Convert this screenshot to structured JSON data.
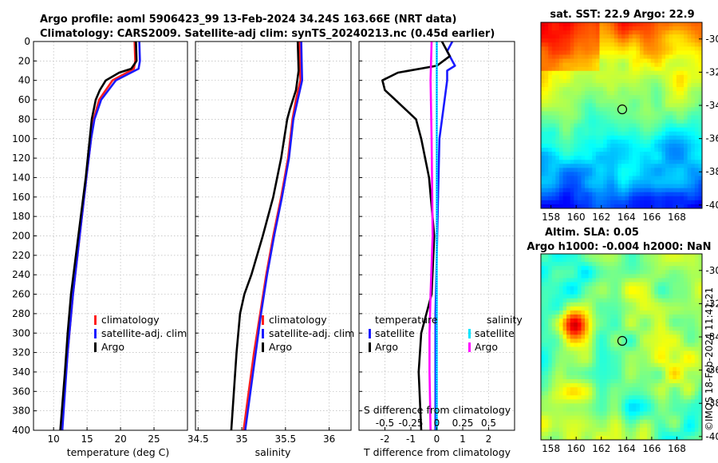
{
  "titles": {
    "line1": "Argo profile: aoml 5906423_99 13-Feb-2024 34.24S 163.66E (NRT data)",
    "line2": "Climatology: CARS2009. Satellite-adj clim: synTS_20240213.nc (0.45d earlier)"
  },
  "colors": {
    "climatology": "#ff1f1f",
    "satellite": "#1a1aff",
    "argo": "#000000",
    "sal_sat": "#00e5ff",
    "sal_argo": "#ff00ff"
  },
  "depth_ticks": [
    "0",
    "20",
    "40",
    "60",
    "80",
    "100",
    "120",
    "140",
    "160",
    "180",
    "200",
    "220",
    "240",
    "260",
    "280",
    "300",
    "320",
    "340",
    "360",
    "380",
    "400"
  ],
  "chart_data": [
    {
      "type": "line",
      "name": "temperature-profile",
      "xlabel": "temperature (deg C)",
      "ylabel": "depth",
      "xlim": [
        7,
        30
      ],
      "ylim": [
        0,
        400
      ],
      "xticks": [
        "10",
        "15",
        "20",
        "25"
      ],
      "legend": {
        "position": "bottom-right",
        "entries": [
          "climatology",
          "satellite-adj. clim",
          "Argo"
        ]
      },
      "series": [
        {
          "name": "climatology",
          "depth": [
            0,
            20,
            28,
            40,
            60,
            80,
            100,
            140,
            200,
            260,
            320,
            400
          ],
          "values": [
            22.1,
            22.2,
            22.0,
            18.8,
            16.8,
            16.0,
            15.6,
            14.9,
            13.9,
            12.9,
            12.1,
            11.2
          ]
        },
        {
          "name": "satellite-adj. clim",
          "depth": [
            0,
            20,
            28,
            40,
            60,
            80,
            100,
            140,
            200,
            260,
            320,
            400
          ],
          "values": [
            22.8,
            22.9,
            22.7,
            19.3,
            17.1,
            16.1,
            15.6,
            14.9,
            13.9,
            12.9,
            12.1,
            11.3
          ]
        },
        {
          "name": "Argo",
          "depth": [
            0,
            20,
            28,
            32,
            40,
            50,
            60,
            70,
            80,
            100,
            140,
            200,
            260,
            300,
            340,
            400
          ],
          "values": [
            22.3,
            22.4,
            21.6,
            19.8,
            17.8,
            16.9,
            16.3,
            16.0,
            15.7,
            15.4,
            14.8,
            13.7,
            12.6,
            12.1,
            11.7,
            11.0
          ]
        }
      ]
    },
    {
      "type": "line",
      "name": "salinity-profile",
      "xlabel": "salinity",
      "ylabel": "depth",
      "xlim": [
        34.47,
        36.25
      ],
      "ylim": [
        0,
        400
      ],
      "xticks": [
        "34.5",
        "35",
        "35.5",
        "36"
      ],
      "legend": {
        "position": "bottom-right",
        "entries": [
          "climatology",
          "satellite-adj. clim",
          "Argo"
        ]
      },
      "series": [
        {
          "name": "climatology",
          "depth": [
            0,
            40,
            60,
            80,
            120,
            160,
            200,
            240,
            280,
            320,
            360,
            400
          ],
          "values": [
            35.66,
            35.67,
            35.62,
            35.58,
            35.53,
            35.45,
            35.36,
            35.28,
            35.21,
            35.14,
            35.08,
            35.02
          ]
        },
        {
          "name": "satellite-adj. clim",
          "depth": [
            0,
            40,
            60,
            80,
            120,
            160,
            200,
            240,
            280,
            320,
            360,
            400
          ],
          "values": [
            35.68,
            35.69,
            35.64,
            35.59,
            35.54,
            35.46,
            35.37,
            35.29,
            35.22,
            35.16,
            35.1,
            35.04
          ]
        },
        {
          "name": "Argo",
          "depth": [
            0,
            30,
            50,
            70,
            80,
            120,
            160,
            200,
            240,
            260,
            280,
            320,
            360,
            400
          ],
          "values": [
            35.64,
            35.65,
            35.62,
            35.55,
            35.52,
            35.45,
            35.36,
            35.24,
            35.11,
            35.03,
            34.98,
            34.94,
            34.91,
            34.88
          ]
        }
      ]
    },
    {
      "type": "line",
      "name": "difference-profile",
      "xlabel": "T difference from climatology",
      "xlabel_top": "S difference from climatology",
      "ylabel": "depth",
      "xlim": [
        -3,
        3
      ],
      "ylim": [
        0,
        400
      ],
      "xticks": [
        "-2",
        "-1",
        "0",
        "1",
        "2"
      ],
      "xticks_top": [
        "-0.5",
        "-0.25",
        "0",
        "0.25",
        "0.5"
      ],
      "legend": {
        "position": "bottom",
        "temperature_header": "temperature",
        "salinity_header": "salinity",
        "entries": [
          "satellite",
          "Argo",
          "satellite",
          "Argo"
        ]
      },
      "series": [
        {
          "name": "temperature satellite",
          "depth": [
            0,
            10,
            25,
            30,
            40,
            60,
            100,
            160,
            220,
            280,
            340,
            400
          ],
          "values": [
            0.6,
            0.4,
            0.7,
            0.4,
            0.4,
            0.3,
            0.1,
            0.05,
            0.0,
            -0.05,
            -0.05,
            -0.05
          ]
        },
        {
          "name": "temperature Argo",
          "depth": [
            0,
            15,
            25,
            32,
            40,
            50,
            60,
            80,
            100,
            140,
            200,
            260,
            300,
            340,
            400
          ],
          "values": [
            0.2,
            0.5,
            0.0,
            -1.5,
            -2.1,
            -2.0,
            -1.6,
            -0.8,
            -0.6,
            -0.3,
            -0.1,
            -0.2,
            -0.6,
            -0.7,
            -0.6
          ]
        },
        {
          "name": "salinity satellite",
          "depth": [
            0,
            40,
            100,
            200,
            300,
            400
          ],
          "values": [
            0.0,
            0.0,
            0.0,
            0.0,
            0.0,
            0.0
          ]
        },
        {
          "name": "salinity Argo",
          "depth": [
            0,
            40,
            100,
            200,
            260,
            300,
            340,
            400
          ],
          "values": [
            -0.05,
            -0.06,
            -0.05,
            -0.04,
            -0.06,
            -0.07,
            -0.07,
            -0.06
          ]
        }
      ]
    }
  ],
  "maps": {
    "sst_title": "sat. SST: 22.9 Argo: 22.9",
    "sla_title1": "Altim. SLA: 0.05",
    "sla_title2": "Argo h1000: -0.004 h2000: NaN",
    "lon_ticks": [
      "158",
      "160",
      "162",
      "164",
      "166",
      "168"
    ],
    "lat_ticks": [
      "-30",
      "-32",
      "-34",
      "-36",
      "-38",
      "-40"
    ],
    "profile_location": {
      "lon": 163.66,
      "lat": -34.24
    }
  },
  "credit": "©IMOS 18-Feb-2024 11:41:21"
}
